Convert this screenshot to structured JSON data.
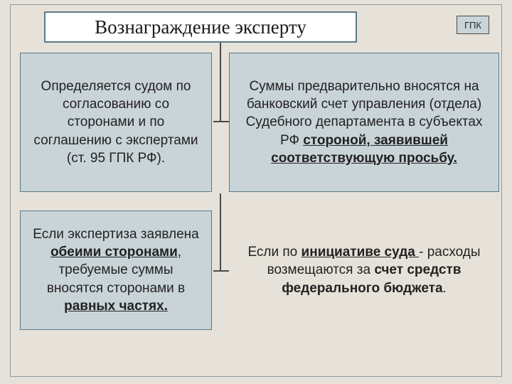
{
  "title": "Вознаграждение эксперту",
  "badge": "ГПК",
  "colors": {
    "page_bg": "#e6e2d9",
    "title_bg": "#ffffff",
    "title_border": "#5b7a88",
    "panel_bg": "#c9d4d8",
    "panel_border": "#5b7a88",
    "connector": "#4a4a4a",
    "text": "#222222"
  },
  "typography": {
    "title_font": "Times New Roman",
    "title_size_pt": 20,
    "body_font": "Century Gothic",
    "body_size_pt": 14
  },
  "panels": {
    "top_left": {
      "text": "Определяется судом по согласованию со сторонами и по соглашению с экспертами (ст. 95 ГПК РФ)."
    },
    "top_right": {
      "prefix": "Суммы предварительно вносятся на банковский счет управления (отдела) Судебного департамента в субъектах РФ ",
      "emph": "стороной, заявившей соответствующую просьбу."
    },
    "bottom_left": {
      "p1": "Если экспертиза заявлена ",
      "e1": "обеими сторонами",
      "p2": ", требуемые суммы вносятся сторонами в ",
      "e2": "равных частях."
    },
    "bottom_right": {
      "p1": "Если по ",
      "e1": "инициативе суда ",
      "p2": "- расходы возмещаются за ",
      "e2": "счет средств федерального бюджета",
      "p3": "."
    }
  }
}
